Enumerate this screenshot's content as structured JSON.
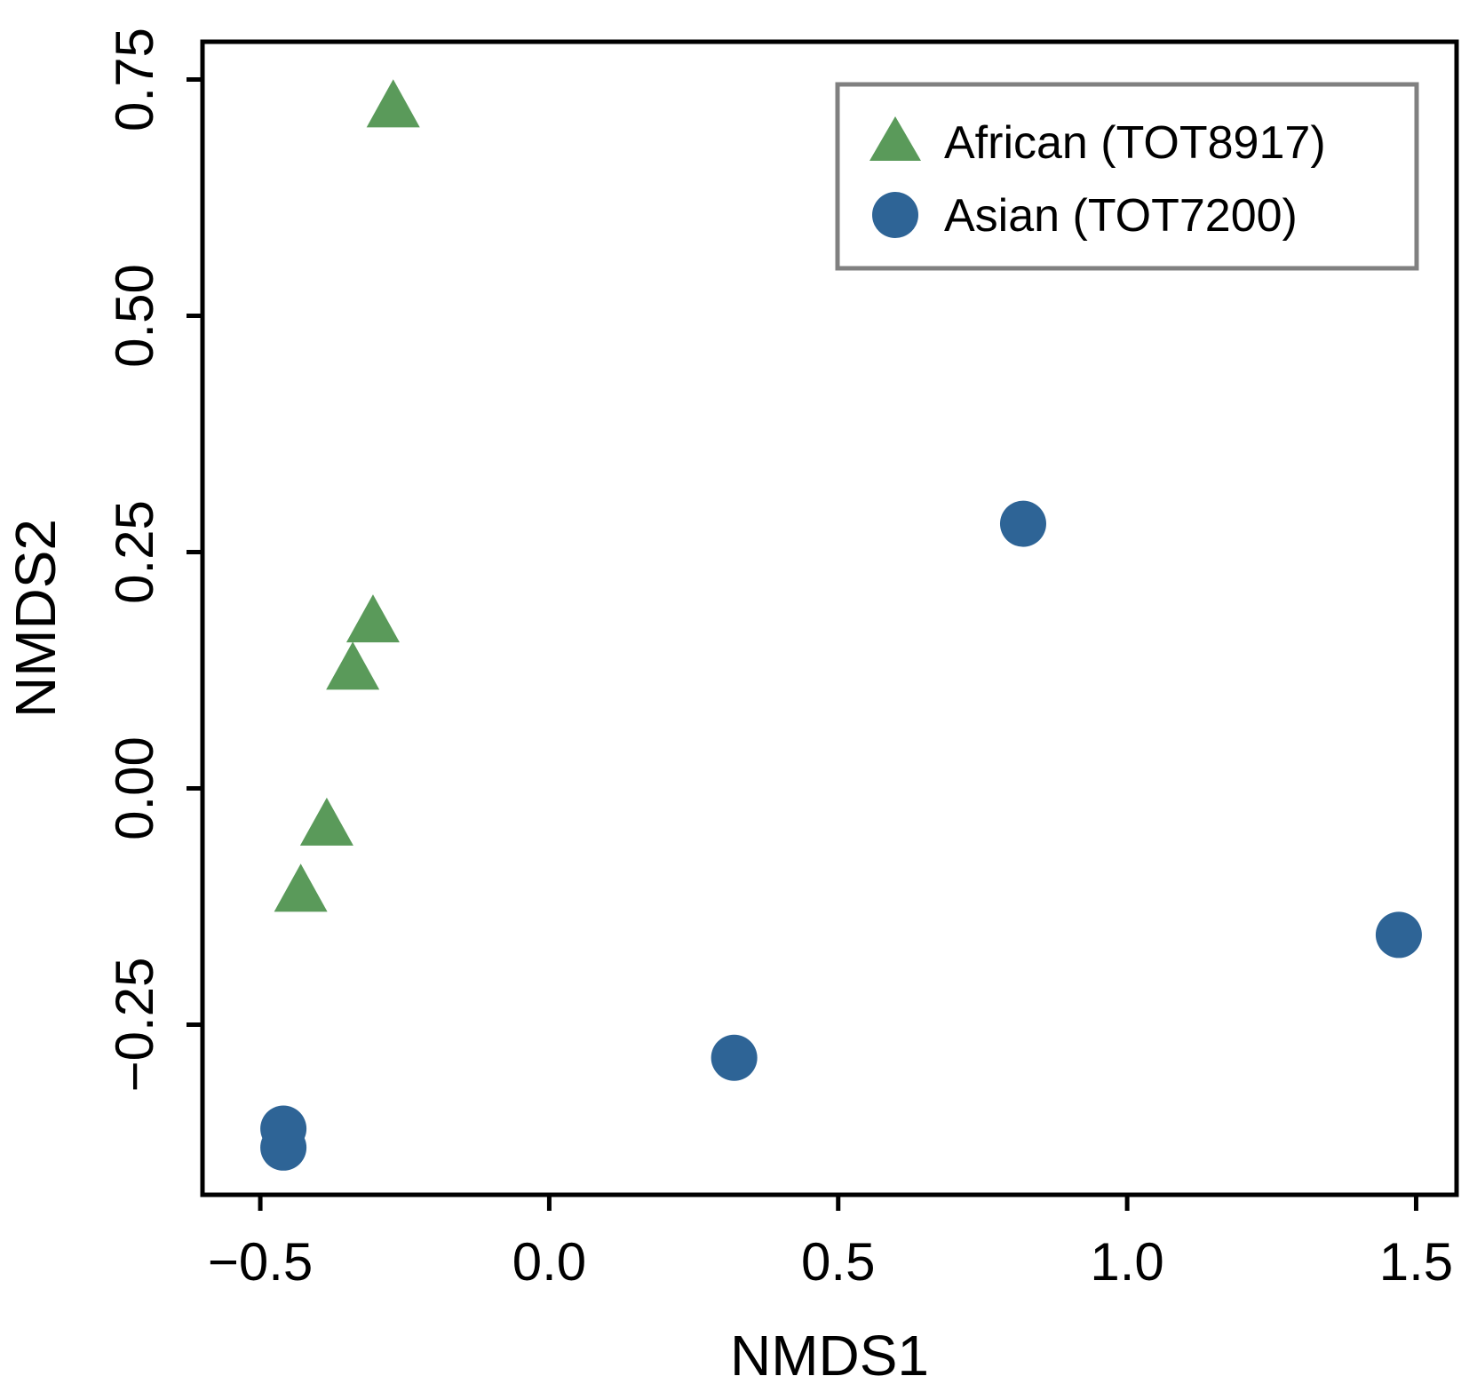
{
  "chart_data": {
    "type": "scatter",
    "title": "",
    "xlabel": "NMDS1",
    "ylabel": "NMDS2",
    "xlim": [
      -0.6,
      1.57
    ],
    "ylim": [
      -0.43,
      0.79
    ],
    "xticks": [
      -0.5,
      0.0,
      0.5,
      1.0,
      1.5
    ],
    "xtick_labels": [
      "−0.5",
      "0.0",
      "0.5",
      "1.0",
      "1.5"
    ],
    "yticks": [
      -0.25,
      0.0,
      0.25,
      0.5,
      0.75
    ],
    "ytick_labels": [
      "−0.25",
      "0.00",
      "0.25",
      "0.50",
      "0.75"
    ],
    "grid": false,
    "legend_position": "top-right",
    "series": [
      {
        "name": "African (TOT8917)",
        "marker": "triangle",
        "color": "#5a9a5a",
        "points": [
          {
            "x": -0.27,
            "y": 0.72
          },
          {
            "x": -0.305,
            "y": 0.175
          },
          {
            "x": -0.34,
            "y": 0.125
          },
          {
            "x": -0.385,
            "y": -0.04
          },
          {
            "x": -0.43,
            "y": -0.11
          }
        ]
      },
      {
        "name": "Asian (TOT7200)",
        "marker": "circle",
        "color": "#2e6496",
        "points": [
          {
            "x": 0.82,
            "y": 0.28
          },
          {
            "x": 1.47,
            "y": -0.155
          },
          {
            "x": 0.32,
            "y": -0.285
          },
          {
            "x": -0.46,
            "y": -0.36
          },
          {
            "x": -0.46,
            "y": -0.38
          }
        ]
      }
    ]
  }
}
